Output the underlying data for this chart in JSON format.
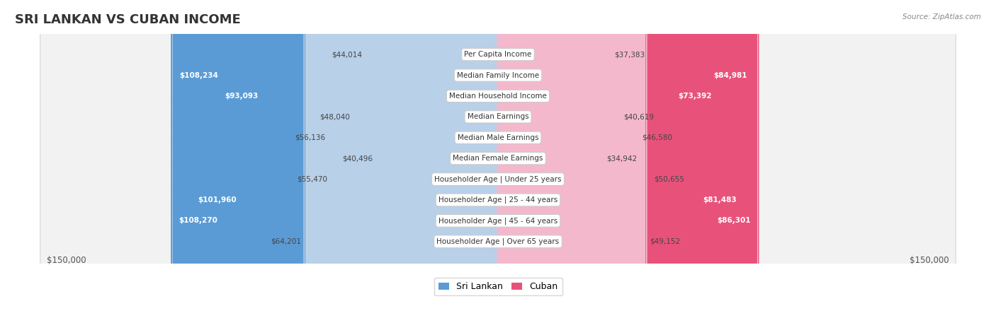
{
  "title": "SRI LANKAN VS CUBAN INCOME",
  "source": "Source: ZipAtlas.com",
  "categories": [
    "Per Capita Income",
    "Median Family Income",
    "Median Household Income",
    "Median Earnings",
    "Median Male Earnings",
    "Median Female Earnings",
    "Householder Age | Under 25 years",
    "Householder Age | 25 - 44 years",
    "Householder Age | 45 - 64 years",
    "Householder Age | Over 65 years"
  ],
  "sri_lankan": [
    44014,
    108234,
    93093,
    48040,
    56136,
    40496,
    55470,
    101960,
    108270,
    64201
  ],
  "cuban": [
    37383,
    84981,
    73392,
    40619,
    46580,
    34942,
    50655,
    81483,
    86301,
    49152
  ],
  "max_value": 150000,
  "sl_light": "#b8d0e8",
  "sl_dark": "#5b9bd5",
  "cu_light": "#f4b8cc",
  "cu_dark": "#e8527a",
  "sl_inside_threshold": 65000,
  "cu_inside_threshold": 65000,
  "sri_lankan_label": "Sri Lankan",
  "cuban_label": "Cuban",
  "background_color": "#ffffff",
  "row_bg_odd": "#f2f2f2",
  "row_bg_even": "#fafafa",
  "xlabel_left": "$150,000",
  "xlabel_right": "$150,000",
  "title_fontsize": 13,
  "label_fontsize": 7.5,
  "value_fontsize": 7.5,
  "legend_fontsize": 9
}
